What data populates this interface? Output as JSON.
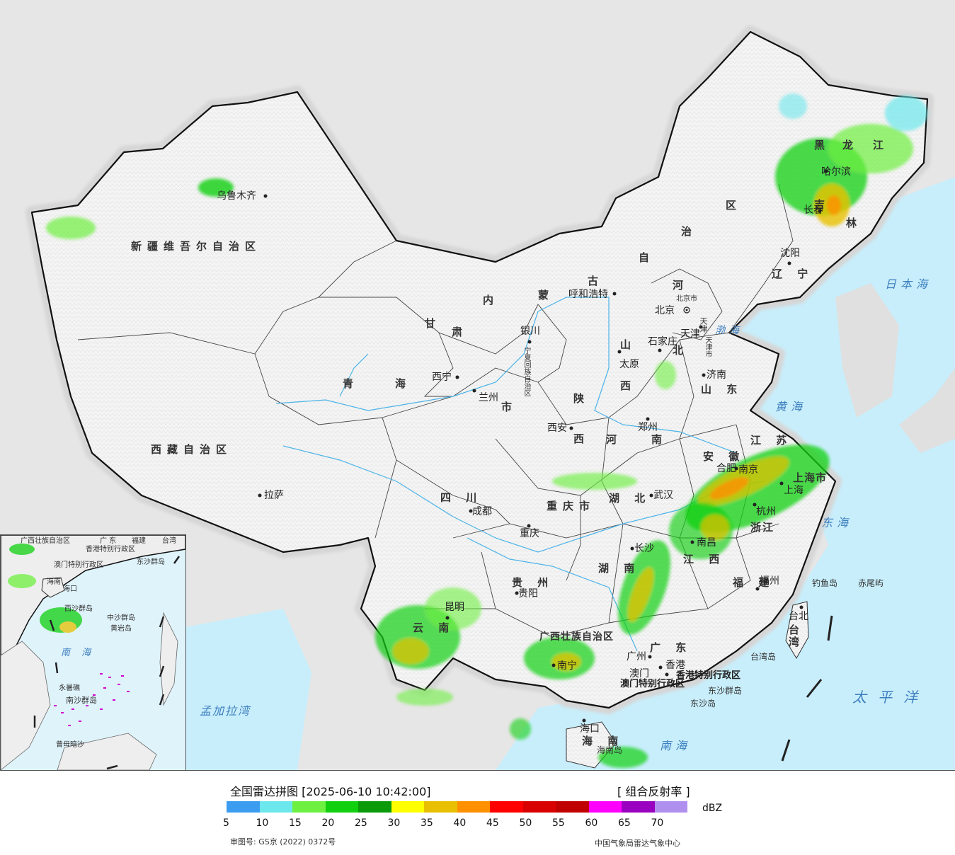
{
  "map": {
    "regions": [
      {
        "id": "xinjiang",
        "label": "新疆维吾尔自治区"
      },
      {
        "id": "tibet",
        "label": "西藏自治区"
      },
      {
        "id": "qinghai_q",
        "label": "青"
      },
      {
        "id": "qinghai_h",
        "label": "海"
      },
      {
        "id": "gansu_g",
        "label": "甘"
      },
      {
        "id": "gansu_s",
        "label": "肃"
      },
      {
        "id": "neimeng_n",
        "label": "内"
      },
      {
        "id": "neimeng_m",
        "label": "蒙"
      },
      {
        "id": "neimeng_g",
        "label": "古"
      },
      {
        "id": "neimeng_z",
        "label": "自"
      },
      {
        "id": "neimeng_zh",
        "label": "治"
      },
      {
        "id": "neimeng_q",
        "label": "区"
      },
      {
        "id": "heilongjiang_h",
        "label": "黑"
      },
      {
        "id": "heilongjiang_l",
        "label": "龙"
      },
      {
        "id": "heilongjiang_j",
        "label": "江"
      },
      {
        "id": "jilin_j",
        "label": "吉"
      },
      {
        "id": "jilin_l",
        "label": "林"
      },
      {
        "id": "liaoning",
        "label": "辽 宁"
      },
      {
        "id": "hebei_h",
        "label": "河"
      },
      {
        "id": "hebei_b",
        "label": "北"
      },
      {
        "id": "shanxi_s",
        "label": "山"
      },
      {
        "id": "shanxi_x",
        "label": "西"
      },
      {
        "id": "shandong",
        "label": "山 东"
      },
      {
        "id": "henan_h",
        "label": "河"
      },
      {
        "id": "henan_n",
        "label": "南"
      },
      {
        "id": "shaanxi_s",
        "label": "陕"
      },
      {
        "id": "shaanxi_x",
        "label": "西"
      },
      {
        "id": "sichuan",
        "label": "四 川"
      },
      {
        "id": "chongqing",
        "label": "重庆市"
      },
      {
        "id": "hubei",
        "label": "湖 北"
      },
      {
        "id": "hunan",
        "label": "湖 南"
      },
      {
        "id": "guizhou",
        "label": "贵 州"
      },
      {
        "id": "yunnan",
        "label": "云 南"
      },
      {
        "id": "guangxi",
        "label": "广西壮族自治区"
      },
      {
        "id": "guangdong",
        "label": "广 东"
      },
      {
        "id": "jiangxi",
        "label": "江 西"
      },
      {
        "id": "fujian",
        "label": "福 建"
      },
      {
        "id": "zhejiang",
        "label": "浙江"
      },
      {
        "id": "anhui",
        "label": "安 徽"
      },
      {
        "id": "jiangsu",
        "label": "江 苏"
      },
      {
        "id": "shanghai",
        "label": "上海市"
      },
      {
        "id": "ningxia",
        "label": "宁夏回族自治区"
      },
      {
        "id": "hainan",
        "label": "海 南"
      },
      {
        "id": "hk",
        "label": "香港特别行政区"
      },
      {
        "id": "macau",
        "label": "澳门特别行政区"
      },
      {
        "id": "taiwan",
        "label": "台湾"
      },
      {
        "id": "tianjin",
        "label": "天津"
      },
      {
        "id": "beijing",
        "label": "北京市"
      },
      {
        "id": "tianjin_shi",
        "label": "天津市"
      },
      {
        "id": "lanzhou_shi",
        "label": "市"
      }
    ],
    "cities": [
      {
        "id": "urumqi",
        "label": "乌鲁木齐"
      },
      {
        "id": "lhasa",
        "label": "拉萨"
      },
      {
        "id": "xining",
        "label": "西宁"
      },
      {
        "id": "lanzhou",
        "label": "兰州"
      },
      {
        "id": "yinchuan",
        "label": "银川"
      },
      {
        "id": "hohhot",
        "label": "呼和浩特"
      },
      {
        "id": "beijing_c",
        "label": "北京"
      },
      {
        "id": "tianjin_c",
        "label": "天津"
      },
      {
        "id": "shijiazhuang",
        "label": "石家庄"
      },
      {
        "id": "taiyuan",
        "label": "太原"
      },
      {
        "id": "jinan",
        "label": "济南"
      },
      {
        "id": "zhengzhou",
        "label": "郑州"
      },
      {
        "id": "xian",
        "label": "西安"
      },
      {
        "id": "chengdu",
        "label": "成都"
      },
      {
        "id": "chongqing_c",
        "label": "重庆"
      },
      {
        "id": "wuhan",
        "label": "武汉"
      },
      {
        "id": "hefei",
        "label": "合肥"
      },
      {
        "id": "nanjing",
        "label": "南京"
      },
      {
        "id": "shanghai_c",
        "label": "上海"
      },
      {
        "id": "hangzhou",
        "label": "杭州"
      },
      {
        "id": "nanchang",
        "label": "南昌"
      },
      {
        "id": "changsha",
        "label": "长沙"
      },
      {
        "id": "guiyang",
        "label": "贵阳"
      },
      {
        "id": "kunming",
        "label": "昆明"
      },
      {
        "id": "nanning",
        "label": "南宁"
      },
      {
        "id": "guangzhou",
        "label": "广州"
      },
      {
        "id": "fuzhou",
        "label": "福州"
      },
      {
        "id": "taibei",
        "label": "台北"
      },
      {
        "id": "haikou",
        "label": "海口"
      },
      {
        "id": "shenyang",
        "label": "沈阳"
      },
      {
        "id": "harbin",
        "label": "哈尔滨"
      },
      {
        "id": "changchun",
        "label": "长春"
      },
      {
        "id": "aomen",
        "label": "澳门"
      },
      {
        "id": "xianggang",
        "label": "香港"
      }
    ],
    "seas": [
      {
        "id": "riben",
        "label": "日本海"
      },
      {
        "id": "bohai",
        "label": "渤海"
      },
      {
        "id": "huanghai",
        "label": "黄海"
      },
      {
        "id": "donghai",
        "label": "东海"
      },
      {
        "id": "taiping",
        "label": "太平洋"
      },
      {
        "id": "nanhai",
        "label": "南海"
      },
      {
        "id": "mengjiala",
        "label": "孟加拉湾"
      }
    ],
    "islands": [
      {
        "id": "diaoyu",
        "label": "钓鱼岛"
      },
      {
        "id": "chiwei",
        "label": "赤尾屿"
      },
      {
        "id": "taiwandao",
        "label": "台湾岛"
      },
      {
        "id": "dongsha_qd",
        "label": "东沙群岛"
      },
      {
        "id": "dongsha_d",
        "label": "东沙岛"
      },
      {
        "id": "hainandao",
        "label": "海南岛"
      }
    ],
    "inset": {
      "labels": [
        {
          "id": "i_guangxi",
          "label": "广西壮族自治区"
        },
        {
          "id": "i_guangdong",
          "label": "广 东"
        },
        {
          "id": "i_fujian",
          "label": "福建"
        },
        {
          "id": "i_taiwan",
          "label": "台湾"
        },
        {
          "id": "i_hk",
          "label": "香港特别行政区"
        },
        {
          "id": "i_macau",
          "label": "澳门特别行政区"
        },
        {
          "id": "i_dongsha",
          "label": "东沙群岛"
        },
        {
          "id": "i_hainan",
          "label": "海南"
        },
        {
          "id": "i_haikou",
          "label": "海口"
        },
        {
          "id": "i_xisha",
          "label": "西沙群岛"
        },
        {
          "id": "i_zhongsha",
          "label": "中沙群岛"
        },
        {
          "id": "i_huangyan",
          "label": "黄岩岛"
        },
        {
          "id": "i_nanhai",
          "label": "南 海"
        },
        {
          "id": "i_nansha",
          "label": "南沙群岛"
        },
        {
          "id": "i_yongshu",
          "label": "永暑礁"
        },
        {
          "id": "i_zengmu",
          "label": "曾母暗沙"
        }
      ]
    }
  },
  "legend": {
    "title": "全国雷达拼图 [2025-06-10 10:42:00]",
    "product": "[ 组合反射率 ]",
    "unit": "dBZ",
    "colors": [
      "#3b9cf0",
      "#6ce8ec",
      "#6ef040",
      "#10d010",
      "#0a9a0a",
      "#ffff00",
      "#e8c000",
      "#ff9000",
      "#ff0000",
      "#d80000",
      "#c00000",
      "#ff00ff",
      "#9a00c0",
      "#b090ee"
    ],
    "ticks": [
      "5",
      "10",
      "15",
      "20",
      "25",
      "30",
      "35",
      "40",
      "45",
      "50",
      "55",
      "60",
      "65",
      "70"
    ],
    "approval": "审图号: GS京 (2022) 0372号",
    "source": "中国气象局雷达气象中心"
  }
}
